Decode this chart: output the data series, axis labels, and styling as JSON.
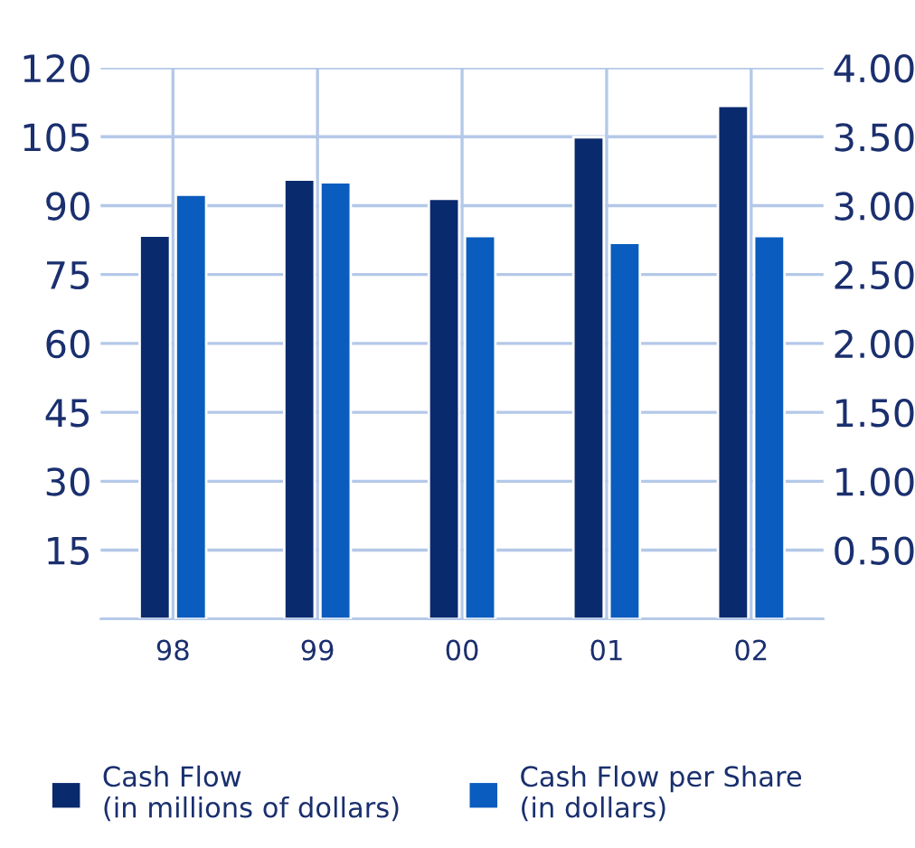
{
  "chart_data": {
    "type": "bar",
    "categories": [
      "98",
      "99",
      "00",
      "01",
      "02"
    ],
    "series": [
      {
        "name": "Cash Flow\n(in millions of dollars)",
        "color": "#0a2a6e",
        "values": [
          83.5,
          95.7,
          91.5,
          104.9,
          111.7
        ]
      },
      {
        "name": "Cash Flow per Share\n(in dollars)",
        "color": "#0a5cbe",
        "axis": "y2",
        "values": [
          3.08,
          3.17,
          2.78,
          2.73,
          2.78
        ]
      }
    ],
    "ylim": [
      0,
      120
    ],
    "yticks": [
      {
        "value": 0,
        "label": null
      },
      15,
      30,
      45,
      60,
      75,
      90,
      105,
      120
    ],
    "y2lim": [
      0,
      4.0
    ],
    "y2ticks": [
      {
        "value": 0,
        "label": null
      },
      {
        "value": 0.5,
        "label": "0.50"
      },
      {
        "value": 1.0,
        "label": "1.00"
      },
      {
        "value": 1.5,
        "label": "1.50"
      },
      {
        "value": 2.0,
        "label": "2.00"
      },
      {
        "value": 2.5,
        "label": "2.50"
      },
      {
        "value": 3.0,
        "label": "3.00"
      },
      {
        "value": 3.5,
        "label": "3.50"
      },
      {
        "value": 4.0,
        "label": "4.00"
      }
    ],
    "grid": true,
    "legend": "bottom"
  }
}
